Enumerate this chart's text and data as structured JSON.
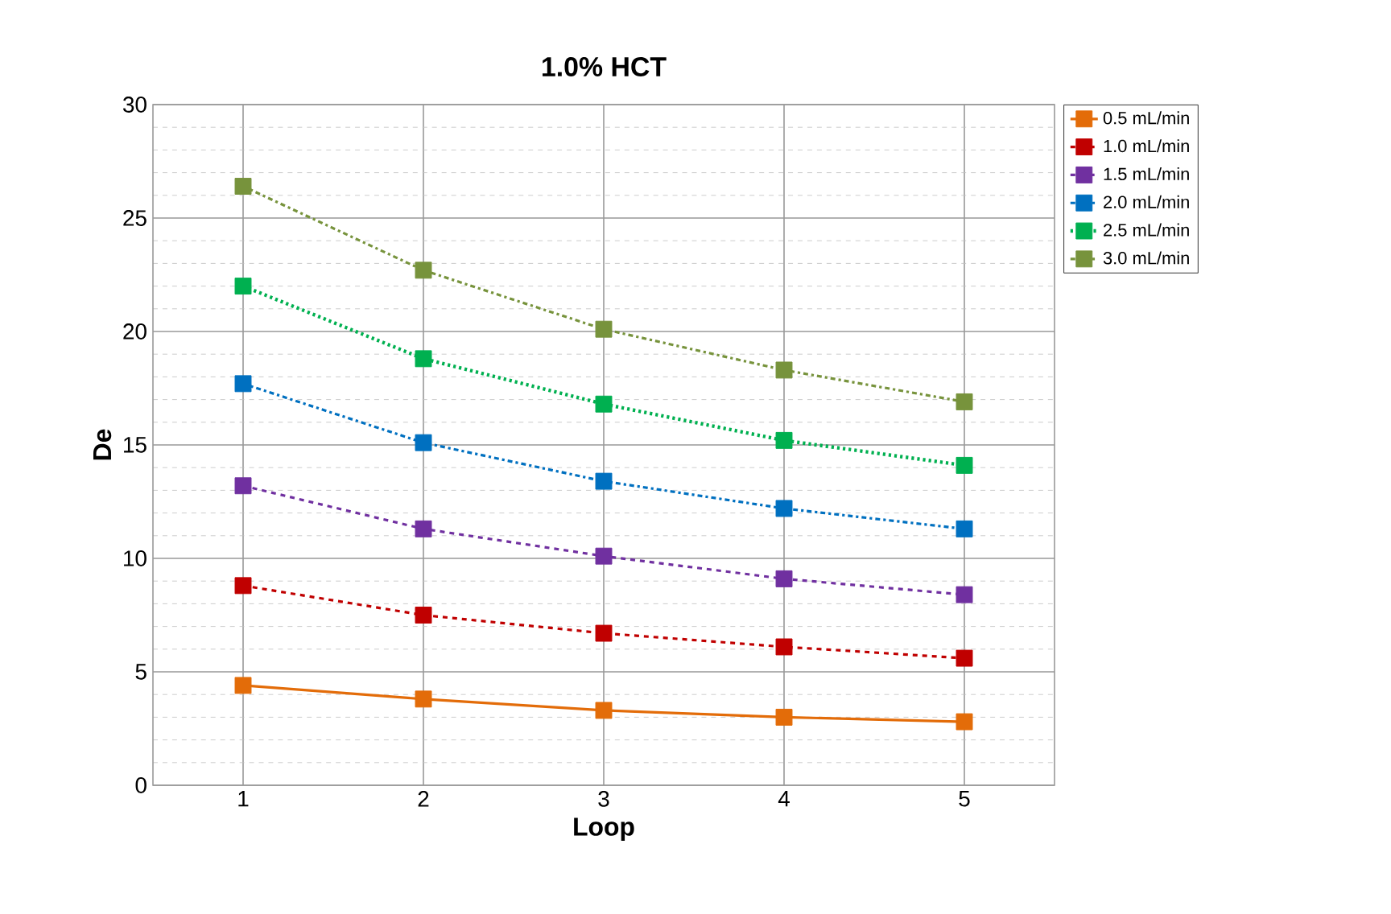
{
  "chart_data": {
    "type": "line",
    "title": "1.0% HCT",
    "xlabel": "Loop",
    "ylabel": "De",
    "categories": [
      "1",
      "2",
      "3",
      "4",
      "5"
    ],
    "series": [
      {
        "name": "0.5 mL/min",
        "color": "#e36c09",
        "line_style": "solid",
        "values": [
          4.4,
          3.8,
          3.3,
          3.0,
          2.8
        ]
      },
      {
        "name": "1.0 mL/min",
        "color": "#c00000",
        "line_style": "dashed",
        "values": [
          8.8,
          7.5,
          6.7,
          6.1,
          5.6
        ]
      },
      {
        "name": "1.5 mL/min",
        "color": "#7030a0",
        "line_style": "dashed",
        "values": [
          13.2,
          11.3,
          10.1,
          9.1,
          8.4
        ]
      },
      {
        "name": "2.0 mL/min",
        "color": "#0070c0",
        "line_style": "dashdot",
        "values": [
          17.7,
          15.1,
          13.4,
          12.2,
          11.3
        ]
      },
      {
        "name": "2.5 mL/min",
        "color": "#00b050",
        "line_style": "dotted",
        "values": [
          22.0,
          18.8,
          16.8,
          15.2,
          14.1
        ]
      },
      {
        "name": "3.0 mL/min",
        "color": "#77933c",
        "line_style": "dashdot",
        "values": [
          26.4,
          22.7,
          20.1,
          18.3,
          16.9
        ]
      }
    ],
    "ylim": [
      0,
      30
    ],
    "yticks": [
      0,
      5,
      10,
      15,
      20,
      25,
      30
    ],
    "grid": true,
    "legend": "top right",
    "marker": "square"
  }
}
